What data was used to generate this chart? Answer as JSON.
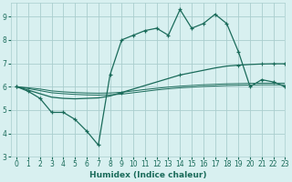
{
  "line1_x": [
    0,
    1,
    2,
    3,
    4,
    5,
    6,
    7,
    8,
    9,
    10,
    11,
    12,
    13,
    14,
    15,
    16,
    17,
    18,
    19,
    20,
    21,
    22,
    23
  ],
  "line1_y": [
    6.0,
    5.8,
    5.5,
    4.9,
    4.9,
    4.6,
    4.1,
    3.5,
    6.5,
    8.0,
    8.2,
    8.4,
    8.5,
    8.2,
    9.3,
    8.5,
    8.7,
    9.1,
    8.7,
    7.5,
    6.0,
    6.3,
    6.2,
    6.0
  ],
  "line2_x": [
    0,
    1,
    2,
    3,
    4,
    5,
    6,
    7,
    8,
    9,
    10,
    11,
    12,
    13,
    14,
    15,
    16,
    17,
    18,
    19,
    20,
    21,
    22,
    23
  ],
  "line2_y": [
    6.0,
    5.85,
    5.7,
    5.55,
    5.5,
    5.48,
    5.5,
    5.52,
    5.6,
    5.75,
    5.9,
    6.05,
    6.2,
    6.35,
    6.5,
    6.6,
    6.7,
    6.8,
    6.88,
    6.92,
    6.95,
    6.97,
    6.98,
    6.98
  ],
  "line3_x": [
    0,
    1,
    2,
    3,
    4,
    5,
    6,
    7,
    8,
    9,
    10,
    11,
    12,
    13,
    14,
    15,
    16,
    17,
    18,
    19,
    20,
    21,
    22,
    23
  ],
  "line3_y": [
    6.0,
    5.95,
    5.9,
    5.82,
    5.78,
    5.75,
    5.73,
    5.72,
    5.73,
    5.76,
    5.82,
    5.88,
    5.93,
    5.98,
    6.02,
    6.05,
    6.08,
    6.1,
    6.12,
    6.13,
    6.14,
    6.15,
    6.15,
    6.15
  ],
  "line4_x": [
    0,
    1,
    2,
    3,
    4,
    5,
    6,
    7,
    8,
    9,
    10,
    11,
    12,
    13,
    14,
    15,
    16,
    17,
    18,
    19,
    20,
    21,
    22,
    23
  ],
  "line4_y": [
    6.0,
    5.92,
    5.83,
    5.74,
    5.7,
    5.67,
    5.65,
    5.64,
    5.65,
    5.68,
    5.74,
    5.8,
    5.86,
    5.91,
    5.95,
    5.98,
    6.01,
    6.03,
    6.05,
    6.06,
    6.07,
    6.08,
    6.08,
    6.08
  ],
  "line_color": "#1a6b5a",
  "bg_color": "#d8f0f0",
  "grid_color": "#aacece",
  "xlabel": "Humidex (Indice chaleur)",
  "xlim": [
    -0.5,
    23
  ],
  "ylim": [
    3,
    9.6
  ],
  "yticks": [
    3,
    4,
    5,
    6,
    7,
    8,
    9
  ],
  "xticks": [
    0,
    1,
    2,
    3,
    4,
    5,
    6,
    7,
    8,
    9,
    10,
    11,
    12,
    13,
    14,
    15,
    16,
    17,
    18,
    19,
    20,
    21,
    22,
    23
  ]
}
